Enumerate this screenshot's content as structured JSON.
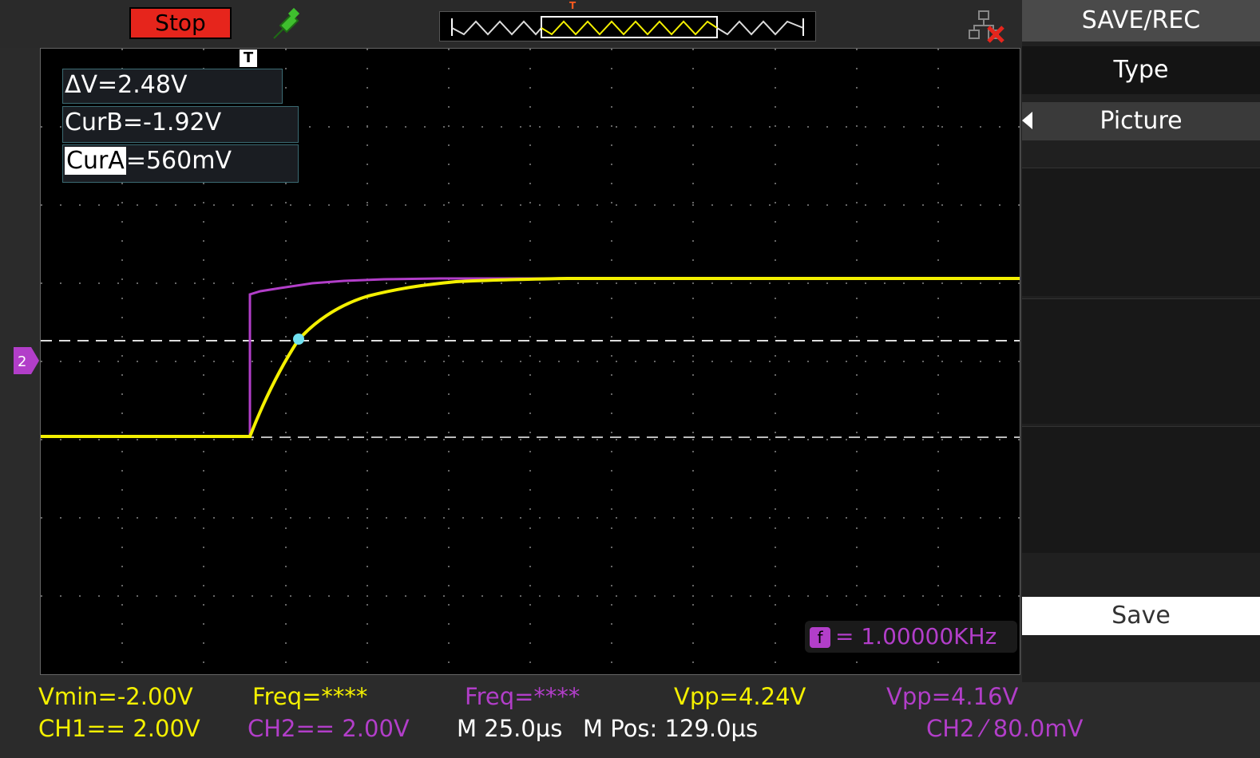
{
  "topbar": {
    "run_state": "Stop",
    "trigger_marker": "T"
  },
  "measurements": {
    "delta_v": "ΔV=2.48V",
    "cur_b": "CurB=-1.92V",
    "cur_a_label": "CurA",
    "cur_a_value": "=560mV"
  },
  "screen": {
    "trigger_pos_label": "T",
    "frequency_readout": "= 1.00000KHz"
  },
  "menu": {
    "title": "SAVE/REC",
    "type_label": "Type",
    "type_value": "Picture",
    "save_label": "Save"
  },
  "status": {
    "vmin": "Vmin=-2.00V",
    "freq_ch1": "Freq=****",
    "freq_ch2": "Freq=****",
    "vpp_ch1": "Vpp=4.24V",
    "vpp_ch2": "Vpp=4.16V",
    "ch1_scale": "CH1== 2.00V",
    "ch2_scale": "CH2== 2.00V",
    "timebase": "M 25.0µs",
    "mpos": "M Pos: 129.0µs",
    "trigger_info": "CH2 ⁄ 80.0mV"
  },
  "colors": {
    "ch1": "#f4f000",
    "ch2": "#b23ec9",
    "cursor": "#ffffff",
    "stop": "#e6251c"
  }
}
